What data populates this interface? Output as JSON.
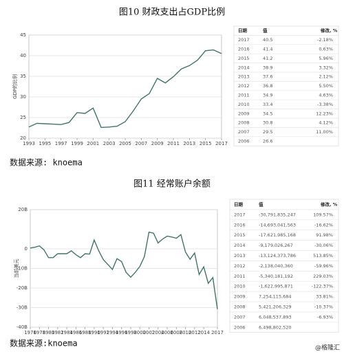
{
  "chart_data": [
    {
      "type": "line",
      "title": "图10 财政支出占GDP比例",
      "y_label": "GDP的比例",
      "x": [
        1993,
        1994,
        1995,
        1996,
        1997,
        1998,
        1999,
        2000,
        2001,
        2002,
        2003,
        2004,
        2005,
        2006,
        2007,
        2008,
        2009,
        2010,
        2011,
        2012,
        2013,
        2014,
        2015,
        2016,
        2017
      ],
      "series": [
        {
          "name": "GDP的比例",
          "color": "#3f7565",
          "values": [
            22.7,
            23.6,
            23.5,
            23.4,
            23.3,
            23.8,
            26.2,
            26.0,
            27.3,
            22.6,
            22.7,
            22.9,
            24.0,
            26.6,
            29.5,
            30.8,
            34.5,
            33.4,
            34.9,
            36.8,
            37.6,
            38.9,
            41.2,
            41.4,
            40.5
          ]
        }
      ],
      "xlim": [
        1993,
        2017
      ],
      "xticks": [
        1993,
        1995,
        1997,
        1999,
        2001,
        2003,
        2005,
        2007,
        2009,
        2011,
        2013,
        2015,
        2017
      ],
      "ylim": [
        20,
        45
      ],
      "yticks": [
        20,
        25,
        30,
        35,
        40,
        45
      ],
      "grid": true
    },
    {
      "type": "line",
      "title": "图11 经常账户余额",
      "y_label": "当前美元",
      "x": [
        1976,
        1977,
        1978,
        1979,
        1980,
        1981,
        1982,
        1983,
        1984,
        1985,
        1986,
        1987,
        1988,
        1989,
        1990,
        1991,
        1992,
        1993,
        1994,
        1995,
        1996,
        1997,
        1998,
        1999,
        2000,
        2001,
        2002,
        2003,
        2004,
        2005,
        2006,
        2007,
        2008,
        2009,
        2010,
        2011,
        2012,
        2013,
        2014,
        2015,
        2016,
        2017
      ],
      "series": [
        {
          "name": "当前美元",
          "color": "#3f7565",
          "values": [
            0.4,
            0.8,
            1.5,
            -0.5,
            -4.5,
            -4.5,
            -2.5,
            -2.5,
            -2.5,
            -1,
            -3,
            -4.5,
            -2.5,
            -2.7,
            4.5,
            -1,
            -5.5,
            -8,
            -10.5,
            -5,
            -6.5,
            -12,
            -14.5,
            -12,
            -9,
            -4,
            8.5,
            8,
            3,
            5,
            6.5,
            6.05,
            5.42,
            7.25,
            -1.62,
            -5.34,
            -2.14,
            -13.12,
            -9.18,
            -17.62,
            -14.69,
            -30.79
          ]
        }
      ],
      "xlim": [
        1976,
        2017
      ],
      "xticks": [
        1976,
        1978,
        1980,
        1982,
        1984,
        1986,
        1988,
        1990,
        1992,
        1994,
        1996,
        1998,
        2000,
        2002,
        2004,
        2006,
        2008,
        2010,
        2012,
        2014,
        2017
      ],
      "ylim": [
        -40,
        20
      ],
      "yticks": [
        {
          "value": 20,
          "label": "20B"
        },
        0,
        {
          "value": -10,
          "label": "-10B"
        },
        {
          "value": -20,
          "label": "-20B"
        },
        {
          "value": -30,
          "label": "-30B"
        },
        {
          "value": -40,
          "label": "-40B"
        }
      ],
      "grid": true
    }
  ],
  "tables": [
    {
      "columns": [
        "日期",
        "值",
        "修改, %"
      ],
      "rows": [
        [
          "2017",
          "40.5",
          "-2.18%"
        ],
        [
          "2016",
          "41.4",
          "0.63%"
        ],
        [
          "2015",
          "41.2",
          "5.96%"
        ],
        [
          "2014",
          "38.9",
          "3.32%"
        ],
        [
          "2013",
          "37.6",
          "2.12%"
        ],
        [
          "2012",
          "36.8",
          "5.50%"
        ],
        [
          "2011",
          "34.9",
          "4.63%"
        ],
        [
          "2010",
          "33.4",
          "-3.38%"
        ],
        [
          "2009",
          "34.5",
          "12.23%"
        ],
        [
          "2008",
          "30.8",
          "4.12%"
        ],
        [
          "2007",
          "29.5",
          "11.00%"
        ],
        [
          "2006",
          "26.6",
          ""
        ]
      ]
    },
    {
      "columns": [
        "日期",
        "值",
        "修改, %"
      ],
      "rows": [
        [
          "2017",
          "-30,791,835,247",
          "109.57%"
        ],
        [
          "2016",
          "-14,693,041,563",
          "-16.62%"
        ],
        [
          "2015",
          "-17,621,985,168",
          "91.98%"
        ],
        [
          "2014",
          "-9,179,026,267",
          "-30.06%"
        ],
        [
          "2013",
          "-13,124,373,786",
          "513.85%"
        ],
        [
          "2012",
          "-2,138,040,360",
          "-59.96%"
        ],
        [
          "2011",
          "-5,340,181,192",
          "229.03%"
        ],
        [
          "2010",
          "-1,622,995,871",
          "-122.37%"
        ],
        [
          "2009",
          "7,254,115,684",
          "33.81%"
        ],
        [
          "2008",
          "5,421,206,329",
          "-10.37%"
        ],
        [
          "2007",
          "6,048,537,893",
          "-6.93%"
        ],
        [
          "2006",
          "6,498,802,520",
          ""
        ]
      ]
    }
  ],
  "sources": [
    "数据来源: knoema",
    "数据来源:knoema"
  ],
  "watermark": "@格隆汇"
}
